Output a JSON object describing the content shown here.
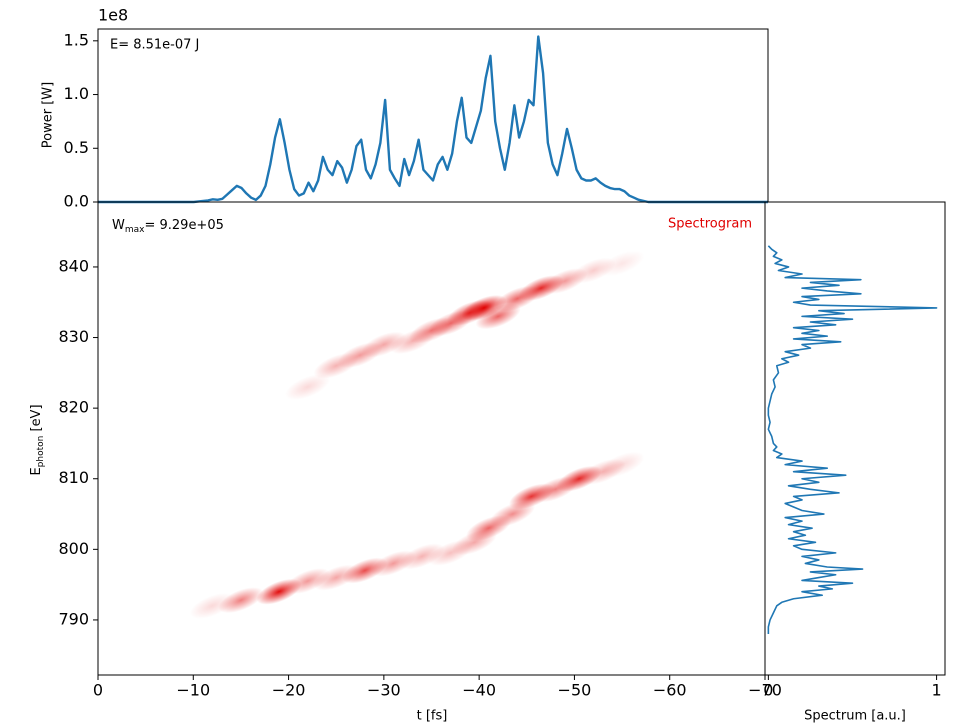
{
  "chart_data": [
    {
      "type": "line",
      "offset_label": "1e8",
      "annotation": "E= 8.51e-07 J",
      "ylabel": "Power [W]",
      "color": "#1f77b4",
      "xlim": [
        0,
        -70
      ],
      "ylim": [
        0,
        1.61
      ],
      "yticks": [
        {
          "value": 0,
          "label": "0.0"
        },
        0.5,
        {
          "value": 1,
          "label": "1.0"
        },
        1.5
      ],
      "x": [
        0,
        -8,
        -8.5,
        -9,
        -9.5,
        -10,
        -10.5,
        -11,
        -11.5,
        -12,
        -12.5,
        -13,
        -13.5,
        -14,
        -14.5,
        -15,
        -15.5,
        -16,
        -16.5,
        -17,
        -17.5,
        -18,
        -18.5,
        -19,
        -19.5,
        -20,
        -20.5,
        -21,
        -21.5,
        -22,
        -22.5,
        -23,
        -23.5,
        -24,
        -24.5,
        -25,
        -25.5,
        -26,
        -26.5,
        -27,
        -27.5,
        -28,
        -28.5,
        -29,
        -29.5,
        -30,
        -30.5,
        -31,
        -31.5,
        -32,
        -32.5,
        -33,
        -33.5,
        -34,
        -34.5,
        -35,
        -35.5,
        -36,
        -36.5,
        -37,
        -37.5,
        -38,
        -38.5,
        -39,
        -39.5,
        -40,
        -40.5,
        -41,
        -41.5,
        -42,
        -42.5,
        -43,
        -43.5,
        -44,
        -44.5,
        -45,
        -45.5,
        -46,
        -46.5,
        -47,
        -47.5,
        -48,
        -48.5,
        -49,
        -49.5,
        -50,
        -50.5,
        -51,
        -51.5,
        -52,
        -52.5,
        -53,
        -53.5,
        -54,
        -54.5,
        -55,
        -55.5,
        -56,
        -56.5,
        -57,
        -57.5,
        -58,
        -70
      ],
      "values": [
        0,
        0,
        0,
        0,
        0,
        0,
        0.005,
        0.01,
        0.015,
        0.025,
        0.02,
        0.03,
        0.07,
        0.11,
        0.15,
        0.13,
        0.08,
        0.04,
        0.02,
        0.06,
        0.15,
        0.35,
        0.6,
        0.77,
        0.55,
        0.3,
        0.12,
        0.06,
        0.08,
        0.18,
        0.1,
        0.2,
        0.42,
        0.3,
        0.25,
        0.38,
        0.32,
        0.18,
        0.3,
        0.52,
        0.58,
        0.3,
        0.22,
        0.35,
        0.55,
        0.95,
        0.3,
        0.22,
        0.15,
        0.4,
        0.25,
        0.38,
        0.58,
        0.3,
        0.25,
        0.2,
        0.35,
        0.42,
        0.3,
        0.45,
        0.75,
        0.97,
        0.6,
        0.55,
        0.7,
        0.85,
        1.15,
        1.36,
        0.75,
        0.5,
        0.3,
        0.55,
        0.9,
        0.6,
        0.75,
        0.95,
        0.9,
        1.54,
        1.2,
        0.55,
        0.35,
        0.25,
        0.45,
        0.68,
        0.5,
        0.3,
        0.22,
        0.2,
        0.2,
        0.22,
        0.18,
        0.15,
        0.13,
        0.12,
        0.12,
        0.1,
        0.06,
        0.04,
        0.02,
        0.01,
        0,
        0,
        0
      ]
    },
    {
      "type": "heatmap",
      "label": "Spectrogram",
      "annotation_symbol": "W",
      "annotation_subscript": "max",
      "annotation_value": "= 9.29e+05",
      "xlabel": "t [fs]",
      "ylabel_symbol": "E",
      "ylabel_subscript": "photon",
      "ylabel_unit": " [eV]",
      "color": "#e00000",
      "xlim": [
        0,
        -70
      ],
      "ylim": [
        782.2,
        849.2
      ],
      "xticks": [
        0,
        {
          "value": -10,
          "label": "−10"
        },
        {
          "value": -20,
          "label": "−20"
        },
        {
          "value": -30,
          "label": "−30"
        },
        {
          "value": -40,
          "label": "−40"
        },
        {
          "value": -50,
          "label": "−50"
        },
        {
          "value": -60,
          "label": "−60"
        },
        {
          "value": -70,
          "label": "−70"
        }
      ],
      "yticks": [
        790,
        800,
        810,
        820,
        830,
        840
      ],
      "x": [
        -22,
        -25,
        -27.5,
        -30,
        -33,
        -35,
        -37,
        -39,
        -40.5,
        -42,
        -44,
        -46.5,
        -49,
        -52,
        -55,
        -12,
        -15,
        -19,
        -22,
        -25,
        -28,
        -31,
        -34,
        -37,
        -39.5,
        -41,
        -43.5,
        -45.5,
        -48,
        -50.5,
        -53,
        -55
      ],
      "y": [
        823,
        826,
        827.5,
        829,
        829.5,
        831,
        832,
        833.5,
        834.2,
        833,
        835.5,
        837,
        838,
        839.5,
        840.5,
        792,
        792.8,
        794,
        795.5,
        796,
        797,
        798,
        799,
        799.5,
        801,
        803,
        805,
        807.5,
        808.5,
        810,
        811,
        812
      ],
      "values": [
        0.15,
        0.3,
        0.4,
        0.35,
        0.3,
        0.5,
        0.55,
        0.8,
        1.0,
        0.6,
        0.6,
        0.85,
        0.4,
        0.2,
        0.1,
        0.15,
        0.5,
        0.95,
        0.4,
        0.35,
        0.7,
        0.4,
        0.3,
        0.25,
        0.35,
        0.6,
        0.45,
        0.8,
        0.5,
        0.85,
        0.3,
        0.15
      ]
    },
    {
      "type": "line",
      "orientation": "horizontal",
      "xlabel": "Spectrum [a.u.]",
      "color": "#1f77b4",
      "xlim": [
        -0.02,
        1.05
      ],
      "ylim": [
        782.2,
        849.2
      ],
      "xticks": [
        0,
        1
      ],
      "y": [
        843,
        842.5,
        842,
        841.5,
        841,
        840.5,
        840,
        839.5,
        839,
        838.5,
        838.2,
        837.8,
        837.4,
        837,
        836.6,
        836.2,
        835.8,
        835.4,
        835,
        834.6,
        834.2,
        833.8,
        833.4,
        833,
        832.6,
        832.2,
        831.8,
        831.4,
        831,
        830.6,
        830.2,
        829.8,
        829.4,
        829,
        828.5,
        828,
        827.5,
        827,
        826.5,
        826,
        825,
        824,
        823,
        822,
        821,
        820,
        819,
        818,
        817,
        816,
        815,
        814.5,
        814,
        813.5,
        813,
        812.5,
        812,
        811.5,
        811,
        810.5,
        810,
        809.5,
        809,
        808.5,
        808,
        807.5,
        807,
        806.5,
        806,
        805.5,
        805,
        804.5,
        804,
        803.5,
        803,
        802.5,
        802,
        801.5,
        801,
        800.5,
        800,
        799.5,
        799,
        798.5,
        798,
        797.5,
        797.2,
        796.8,
        796.4,
        796,
        795.6,
        795.2,
        794.8,
        794.4,
        794,
        793.5,
        793,
        792.5,
        792,
        791,
        790,
        789,
        788
      ],
      "values": [
        0,
        0.02,
        0.05,
        0.03,
        0.08,
        0.04,
        0.12,
        0.06,
        0.2,
        0.1,
        0.55,
        0.25,
        0.42,
        0.2,
        0.35,
        0.55,
        0.2,
        0.3,
        0.15,
        0.25,
        1.0,
        0.3,
        0.45,
        0.2,
        0.5,
        0.25,
        0.4,
        0.15,
        0.3,
        0.2,
        0.35,
        0.15,
        0.43,
        0.2,
        0.25,
        0.1,
        0.18,
        0.08,
        0.12,
        0.05,
        0.06,
        0.03,
        0.04,
        0.02,
        0.01,
        0,
        0,
        0.01,
        0,
        0.02,
        0.03,
        0.05,
        0.03,
        0.08,
        0.05,
        0.2,
        0.1,
        0.35,
        0.15,
        0.46,
        0.2,
        0.3,
        0.12,
        0.25,
        0.42,
        0.15,
        0.2,
        0.1,
        0.15,
        0.2,
        0.33,
        0.1,
        0.2,
        0.12,
        0.26,
        0.15,
        0.22,
        0.12,
        0.28,
        0.15,
        0.2,
        0.4,
        0.2,
        0.3,
        0.22,
        0.35,
        0.56,
        0.25,
        0.4,
        0.3,
        0.2,
        0.5,
        0.3,
        0.38,
        0.2,
        0.32,
        0.15,
        0.08,
        0.05,
        0.03,
        0.01,
        0,
        0
      ]
    }
  ]
}
